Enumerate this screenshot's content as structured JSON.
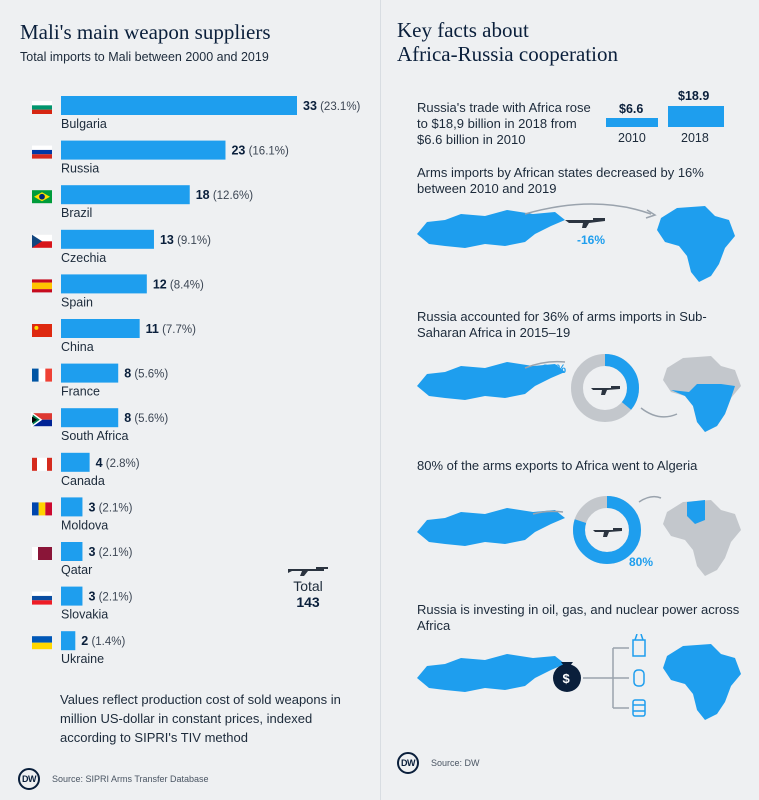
{
  "left": {
    "title": "Mali's main weapon suppliers",
    "subtitle": "Total imports to Mali between 2000 and 2019",
    "total_label": "Total",
    "total_value": "143",
    "note": "Values reflect production cost of sold weapons in million US-dollar in constant prices, indexed according to SIPRI's TIV method",
    "source": "Source: SIPRI Arms Transfer Database",
    "logo": "DW"
  },
  "chart_data": {
    "type": "bar",
    "orientation": "horizontal",
    "categories": [
      "Bulgaria",
      "Russia",
      "Brazil",
      "Czechia",
      "Spain",
      "China",
      "France",
      "South Africa",
      "Canada",
      "Moldova",
      "Qatar",
      "Slovakia",
      "Ukraine"
    ],
    "values": [
      33,
      23,
      18,
      13,
      12,
      11,
      8,
      8,
      4,
      3,
      3,
      3,
      2
    ],
    "shares": [
      "23.1%",
      "16.1%",
      "12.6%",
      "9.1%",
      "8.4%",
      "7.7%",
      "5.6%",
      "5.6%",
      "2.8%",
      "2.1%",
      "2.1%",
      "2.1%",
      "1.4%"
    ],
    "title": "Mali's main weapon suppliers",
    "subtitle": "Total imports to Mali between 2000 and 2019",
    "bar_color": "#1e9eee"
  },
  "right": {
    "title_line1": "Key facts about",
    "title_line2": "Africa-Russia cooperation",
    "fact1": {
      "text": "Russia's trade with Africa rose to $18,9 billion in 2018 from $6.6 billion in 2010",
      "value_2010": "$6.6",
      "value_2018": "$18.9",
      "year_2010": "2010",
      "year_2018": "2018",
      "amounts": [
        6.6,
        18.9
      ]
    },
    "fact2": {
      "text": "Arms imports by African states decreased by 16% between 2010 and 2019",
      "pct": "-16%"
    },
    "fact3": {
      "text": "Russia accounted for 36% of arms imports in Sub-Saharan Africa in 2015–19",
      "pct": "36%",
      "share": 36
    },
    "fact4": {
      "text": "80% of the arms exports to Africa went to Algeria",
      "pct": "80%",
      "share": 80
    },
    "fact5": {
      "text": "Russia is investing in oil, gas, and nuclear power across Africa"
    },
    "source": "Source: DW",
    "logo": "DW"
  },
  "colors": {
    "accent": "#1e9eee",
    "navy": "#0a1f3b",
    "grey": "#c3c7cc",
    "background": "#eef0f2"
  },
  "icons": [
    "flag-icon",
    "rifle-icon",
    "russia-map-icon",
    "africa-map-icon",
    "arrow-icon",
    "money-bag-icon",
    "nuclear-plant-icon",
    "gas-tank-icon",
    "oil-barrel-icon"
  ]
}
